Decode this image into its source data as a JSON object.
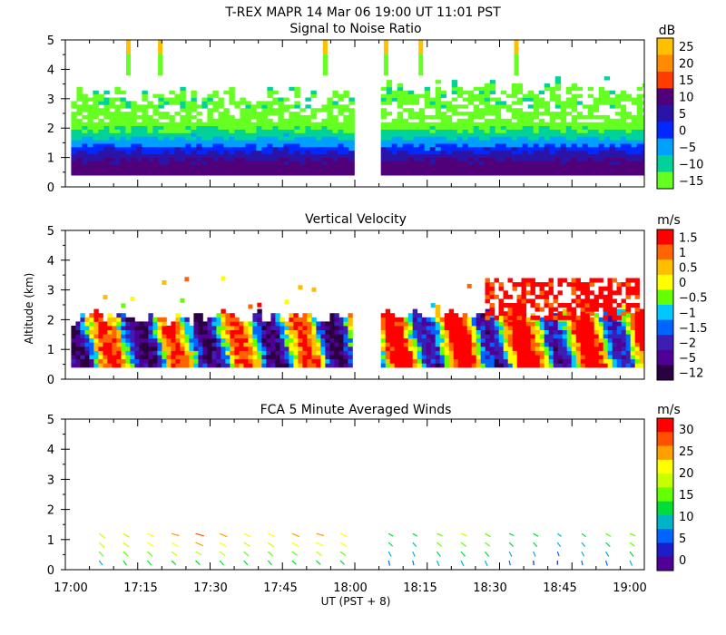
{
  "header": {
    "title": "T-REX   MAPR 14 Mar 06   19:00 UT   11:01   PST"
  },
  "x_axis": {
    "label": "UT  (PST + 8)",
    "ticks": [
      "17:00",
      "17:15",
      "17:30",
      "17:45",
      "18:00",
      "18:15",
      "18:30",
      "18:45",
      "19:00"
    ],
    "range_hours": [
      17.0,
      19.0
    ]
  },
  "y_axis": {
    "label": "Altitude (km)",
    "ticks": [
      "0",
      "1",
      "2",
      "3",
      "4",
      "5"
    ],
    "range_km": [
      0,
      5
    ]
  },
  "chart_data": [
    {
      "type": "heatmap",
      "title": "Signal to Noise Ratio",
      "units": "dB",
      "colorbar": {
        "labels": [
          "25",
          "20",
          "15",
          "10",
          "5",
          "0",
          "−5",
          "−10",
          "−15"
        ],
        "colors": [
          "#ffc000",
          "#ff8c00",
          "#ff3c00",
          "#500078",
          "#2a14a8",
          "#0028ff",
          "#00a0ff",
          "#00d29a",
          "#66ff22"
        ]
      },
      "data_gap_hours": [
        17.99,
        18.09
      ],
      "approx_profile": [
        {
          "altitude_km": 0.5,
          "snr_db": 10
        },
        {
          "altitude_km": 1.0,
          "snr_db": 0
        },
        {
          "altitude_km": 1.5,
          "snr_db": -10
        },
        {
          "altitude_km": 2.0,
          "snr_db": -15
        },
        {
          "altitude_km": 3.0,
          "snr_db": -15
        }
      ]
    },
    {
      "type": "heatmap",
      "title": "Vertical Velocity",
      "units": "m/s",
      "colorbar": {
        "labels": [
          "1.5",
          "1",
          "0.5",
          "0",
          "−0.5",
          "−1",
          "−1.5",
          "−2",
          "−5",
          "−12"
        ],
        "colors": [
          "#ff0000",
          "#ff6400",
          "#ffbe00",
          "#ffff00",
          "#64ff00",
          "#00c8ff",
          "#0064ff",
          "#3c1eb4",
          "#500096",
          "#2a0040"
        ]
      },
      "data_gap_hours": [
        17.99,
        18.09
      ],
      "approx_top_km": 2.0
    },
    {
      "type": "scatter",
      "title": "FCA 5 Minute Averaged Winds",
      "units": "m/s",
      "colorbar": {
        "labels": [
          "30",
          "25",
          "20",
          "15",
          "10",
          "5",
          "0"
        ],
        "colors": [
          "#ff0000",
          "#ff5000",
          "#ffa000",
          "#ffff00",
          "#c8ff00",
          "#64ff00",
          "#00dc3c",
          "#00b4c8",
          "#0064ff",
          "#1e1ec8",
          "#500096"
        ]
      },
      "profile_times_ut": [
        "17:07",
        "17:12",
        "17:17",
        "17:22",
        "17:27",
        "17:32",
        "17:37",
        "17:42",
        "17:47",
        "17:52",
        "17:57",
        "18:07",
        "18:12",
        "18:17",
        "18:22",
        "18:27",
        "18:32",
        "18:37",
        "18:42",
        "18:47",
        "18:52",
        "18:57"
      ],
      "profile_levels_km": [
        0.3,
        0.6,
        0.9,
        1.2
      ],
      "approx_speed_ms": [
        [
          10,
          14,
          17,
          18
        ],
        [
          11,
          15,
          18,
          19
        ],
        [
          12,
          16,
          20,
          21
        ],
        [
          13,
          17,
          22,
          24
        ],
        [
          13,
          18,
          24,
          27
        ],
        [
          12,
          17,
          22,
          24
        ],
        [
          11,
          15,
          19,
          21
        ],
        [
          11,
          15,
          19,
          22
        ],
        [
          12,
          16,
          21,
          23
        ],
        [
          12,
          17,
          22,
          24
        ],
        [
          12,
          16,
          21,
          22
        ],
        [
          6,
          9,
          11,
          12
        ],
        [
          5,
          8,
          10,
          12
        ],
        [
          9,
          12,
          15,
          16
        ],
        [
          10,
          13,
          16,
          17
        ],
        [
          9,
          12,
          14,
          16
        ],
        [
          5,
          9,
          12,
          13
        ],
        [
          4,
          8,
          11,
          13
        ],
        [
          3,
          6,
          9,
          10
        ],
        [
          5,
          8,
          10,
          12
        ],
        [
          7,
          10,
          13,
          14
        ],
        [
          8,
          12,
          14,
          15
        ]
      ],
      "approx_direction_deg": [
        [
          230,
          235,
          240,
          245
        ],
        [
          230,
          240,
          245,
          250
        ],
        [
          235,
          240,
          250,
          255
        ],
        [
          240,
          245,
          250,
          260
        ],
        [
          240,
          250,
          255,
          260
        ],
        [
          235,
          245,
          250,
          255
        ],
        [
          235,
          240,
          250,
          255
        ],
        [
          235,
          240,
          245,
          255
        ],
        [
          240,
          245,
          250,
          255
        ],
        [
          240,
          245,
          255,
          260
        ],
        [
          240,
          245,
          250,
          255
        ],
        [
          200,
          220,
          240,
          250
        ],
        [
          200,
          215,
          235,
          250
        ],
        [
          215,
          230,
          245,
          255
        ],
        [
          220,
          235,
          245,
          255
        ],
        [
          215,
          230,
          245,
          250
        ],
        [
          200,
          220,
          240,
          255
        ],
        [
          190,
          215,
          235,
          250
        ],
        [
          180,
          210,
          230,
          245
        ],
        [
          200,
          220,
          235,
          245
        ],
        [
          210,
          225,
          240,
          250
        ],
        [
          215,
          230,
          245,
          255
        ]
      ]
    }
  ]
}
